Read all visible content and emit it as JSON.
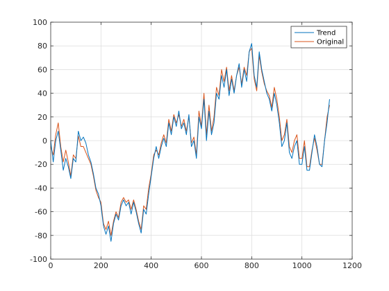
{
  "chart_data": {
    "type": "line",
    "title": "",
    "xlabel": "",
    "ylabel": "",
    "xlim": [
      0,
      1200
    ],
    "ylim": [
      -100,
      100
    ],
    "x_ticks": [
      0,
      200,
      400,
      600,
      800,
      1000,
      1200
    ],
    "y_ticks": [
      -100,
      -80,
      -60,
      -40,
      -20,
      0,
      20,
      40,
      60,
      80,
      100
    ],
    "grid": true,
    "legend_position": "top-right",
    "series": [
      {
        "name": "Trend",
        "color": "#0072BD",
        "points": [
          [
            0,
            0
          ],
          [
            10,
            -18
          ],
          [
            20,
            0
          ],
          [
            30,
            8
          ],
          [
            40,
            -8
          ],
          [
            50,
            -25
          ],
          [
            60,
            -15
          ],
          [
            70,
            -22
          ],
          [
            80,
            -32
          ],
          [
            90,
            -15
          ],
          [
            100,
            -18
          ],
          [
            110,
            8
          ],
          [
            120,
            0
          ],
          [
            130,
            3
          ],
          [
            140,
            -2
          ],
          [
            150,
            -12
          ],
          [
            160,
            -18
          ],
          [
            170,
            -28
          ],
          [
            180,
            -40
          ],
          [
            190,
            -45
          ],
          [
            200,
            -55
          ],
          [
            210,
            -72
          ],
          [
            220,
            -79
          ],
          [
            230,
            -72
          ],
          [
            240,
            -85
          ],
          [
            250,
            -70
          ],
          [
            260,
            -62
          ],
          [
            270,
            -67
          ],
          [
            280,
            -55
          ],
          [
            290,
            -50
          ],
          [
            300,
            -55
          ],
          [
            310,
            -52
          ],
          [
            320,
            -62
          ],
          [
            330,
            -52
          ],
          [
            340,
            -60
          ],
          [
            350,
            -70
          ],
          [
            360,
            -78
          ],
          [
            370,
            -58
          ],
          [
            380,
            -62
          ],
          [
            390,
            -45
          ],
          [
            400,
            -30
          ],
          [
            410,
            -15
          ],
          [
            420,
            -5
          ],
          [
            430,
            -15
          ],
          [
            440,
            -5
          ],
          [
            450,
            2
          ],
          [
            460,
            -5
          ],
          [
            470,
            15
          ],
          [
            480,
            5
          ],
          [
            490,
            20
          ],
          [
            500,
            12
          ],
          [
            510,
            25
          ],
          [
            520,
            10
          ],
          [
            530,
            15
          ],
          [
            540,
            5
          ],
          [
            550,
            22
          ],
          [
            560,
            -5
          ],
          [
            570,
            0
          ],
          [
            580,
            -15
          ],
          [
            590,
            20
          ],
          [
            600,
            10
          ],
          [
            610,
            35
          ],
          [
            620,
            0
          ],
          [
            630,
            25
          ],
          [
            640,
            5
          ],
          [
            650,
            15
          ],
          [
            660,
            40
          ],
          [
            670,
            35
          ],
          [
            680,
            55
          ],
          [
            690,
            45
          ],
          [
            700,
            60
          ],
          [
            710,
            38
          ],
          [
            720,
            52
          ],
          [
            730,
            40
          ],
          [
            740,
            55
          ],
          [
            750,
            65
          ],
          [
            760,
            45
          ],
          [
            770,
            60
          ],
          [
            780,
            50
          ],
          [
            790,
            75
          ],
          [
            800,
            82
          ],
          [
            810,
            55
          ],
          [
            820,
            45
          ],
          [
            830,
            75
          ],
          [
            840,
            60
          ],
          [
            850,
            50
          ],
          [
            860,
            40
          ],
          [
            870,
            35
          ],
          [
            880,
            25
          ],
          [
            890,
            40
          ],
          [
            900,
            30
          ],
          [
            910,
            15
          ],
          [
            920,
            -5
          ],
          [
            930,
            0
          ],
          [
            940,
            15
          ],
          [
            950,
            -10
          ],
          [
            960,
            -15
          ],
          [
            970,
            -5
          ],
          [
            980,
            0
          ],
          [
            990,
            -20
          ],
          [
            1000,
            -20
          ],
          [
            1010,
            -5
          ],
          [
            1020,
            -25
          ],
          [
            1030,
            -25
          ],
          [
            1040,
            -10
          ],
          [
            1050,
            5
          ],
          [
            1060,
            -5
          ],
          [
            1070,
            -20
          ],
          [
            1080,
            -22
          ],
          [
            1090,
            0
          ],
          [
            1100,
            15
          ],
          [
            1110,
            35
          ]
        ]
      },
      {
        "name": "Original",
        "color": "#D95319",
        "points": [
          [
            0,
            -5
          ],
          [
            10,
            -12
          ],
          [
            20,
            5
          ],
          [
            30,
            15
          ],
          [
            40,
            -5
          ],
          [
            50,
            -18
          ],
          [
            60,
            -8
          ],
          [
            70,
            -18
          ],
          [
            80,
            -30
          ],
          [
            90,
            -12
          ],
          [
            100,
            -15
          ],
          [
            110,
            4
          ],
          [
            120,
            -5
          ],
          [
            130,
            -5
          ],
          [
            140,
            -10
          ],
          [
            150,
            -15
          ],
          [
            160,
            -20
          ],
          [
            170,
            -30
          ],
          [
            180,
            -42
          ],
          [
            190,
            -48
          ],
          [
            200,
            -52
          ],
          [
            210,
            -70
          ],
          [
            220,
            -75
          ],
          [
            230,
            -68
          ],
          [
            240,
            -80
          ],
          [
            250,
            -68
          ],
          [
            260,
            -60
          ],
          [
            270,
            -65
          ],
          [
            280,
            -52
          ],
          [
            290,
            -48
          ],
          [
            300,
            -52
          ],
          [
            310,
            -50
          ],
          [
            320,
            -58
          ],
          [
            330,
            -50
          ],
          [
            340,
            -58
          ],
          [
            350,
            -68
          ],
          [
            360,
            -75
          ],
          [
            370,
            -55
          ],
          [
            380,
            -58
          ],
          [
            390,
            -40
          ],
          [
            400,
            -28
          ],
          [
            410,
            -12
          ],
          [
            420,
            -8
          ],
          [
            430,
            -12
          ],
          [
            440,
            -2
          ],
          [
            450,
            5
          ],
          [
            460,
            -2
          ],
          [
            470,
            18
          ],
          [
            480,
            8
          ],
          [
            490,
            22
          ],
          [
            500,
            15
          ],
          [
            510,
            22
          ],
          [
            520,
            12
          ],
          [
            530,
            18
          ],
          [
            540,
            8
          ],
          [
            550,
            20
          ],
          [
            560,
            -2
          ],
          [
            570,
            3
          ],
          [
            580,
            -12
          ],
          [
            590,
            25
          ],
          [
            600,
            12
          ],
          [
            610,
            40
          ],
          [
            620,
            5
          ],
          [
            630,
            30
          ],
          [
            640,
            8
          ],
          [
            650,
            20
          ],
          [
            660,
            45
          ],
          [
            670,
            38
          ],
          [
            680,
            60
          ],
          [
            690,
            50
          ],
          [
            700,
            62
          ],
          [
            710,
            42
          ],
          [
            720,
            55
          ],
          [
            730,
            42
          ],
          [
            740,
            55
          ],
          [
            750,
            62
          ],
          [
            760,
            48
          ],
          [
            770,
            62
          ],
          [
            780,
            55
          ],
          [
            790,
            75
          ],
          [
            800,
            78
          ],
          [
            810,
            52
          ],
          [
            820,
            42
          ],
          [
            830,
            72
          ],
          [
            840,
            58
          ],
          [
            850,
            48
          ],
          [
            860,
            42
          ],
          [
            870,
            38
          ],
          [
            880,
            28
          ],
          [
            890,
            45
          ],
          [
            900,
            35
          ],
          [
            910,
            20
          ],
          [
            920,
            0
          ],
          [
            930,
            5
          ],
          [
            940,
            18
          ],
          [
            950,
            -5
          ],
          [
            960,
            -10
          ],
          [
            970,
            0
          ],
          [
            980,
            5
          ],
          [
            990,
            -15
          ],
          [
            1000,
            -15
          ],
          [
            1010,
            0
          ],
          [
            1020,
            -22
          ],
          [
            1030,
            -22
          ],
          [
            1040,
            -8
          ],
          [
            1050,
            2
          ],
          [
            1060,
            -8
          ],
          [
            1070,
            -20
          ],
          [
            1080,
            -20
          ],
          [
            1090,
            0
          ],
          [
            1100,
            20
          ],
          [
            1110,
            30
          ]
        ]
      }
    ]
  }
}
